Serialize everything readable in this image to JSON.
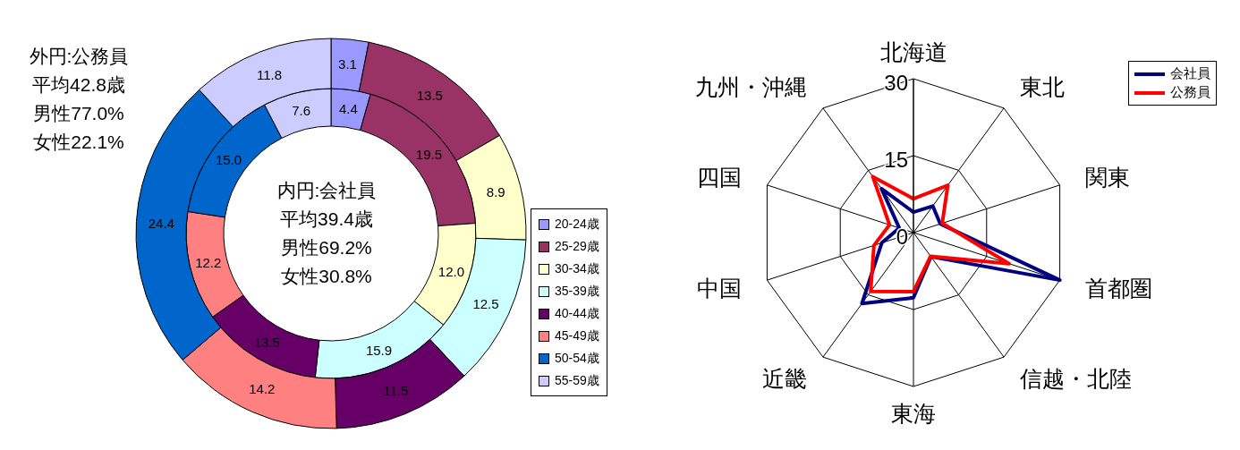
{
  "chart_data": [
    {
      "type": "donut",
      "categories": [
        "20-24歳",
        "25-29歳",
        "30-34歳",
        "35-39歳",
        "40-44歳",
        "45-49歳",
        "50-54歳",
        "55-59歳"
      ],
      "colors": [
        "#9999ff",
        "#993366",
        "#ffffcc",
        "#ccffff",
        "#660066",
        "#ff8080",
        "#0066cc",
        "#ccccff"
      ],
      "series": [
        {
          "values": [
            4.4,
            19.5,
            12.0,
            15.9,
            13.5,
            12.2,
            15.0,
            7.6
          ],
          "value_labels": [
            "4.4",
            "19.5",
            "12.0",
            "15.9",
            "13.5",
            "12.2",
            "15.0",
            "7.6"
          ]
        },
        {
          "values": [
            3.1,
            13.5,
            8.9,
            12.5,
            11.5,
            14.2,
            24.4,
            11.8
          ],
          "value_labels": [
            "3.1",
            "13.5",
            "8.9",
            "12.5",
            "11.5",
            "14.2",
            "24.4",
            "11.8"
          ]
        }
      ],
      "legend": "right",
      "annotations": [
        "外円:公務員",
        "平均42.8歳",
        "男性77.0%",
        "女性22.1%",
        "内円:会社員",
        "平均39.4歳",
        "男性69.2%",
        "女性30.8%"
      ]
    },
    {
      "type": "radar",
      "categories": [
        "北海道",
        "東北",
        "関東",
        "首都圏",
        "信越・北陸",
        "東海",
        "近畿",
        "中国",
        "四国",
        "九州・沖縄"
      ],
      "series": [
        {
          "name": "会社員",
          "color": "#000080",
          "values": [
            4.0,
            6.4,
            5.5,
            30.0,
            5.8,
            12.7,
            17.1,
            6.5,
            2.9,
            10.6
          ]
        },
        {
          "name": "公務員",
          "color": "#ff0000",
          "values": [
            6.6,
            11.4,
            5.9,
            19.6,
            5.7,
            11.5,
            14.2,
            8.1,
            4.9,
            13.5
          ]
        }
      ],
      "ylim": [
        0,
        30
      ],
      "yticks": [
        0,
        15,
        30
      ],
      "grid": true,
      "legend": "top right"
    }
  ]
}
